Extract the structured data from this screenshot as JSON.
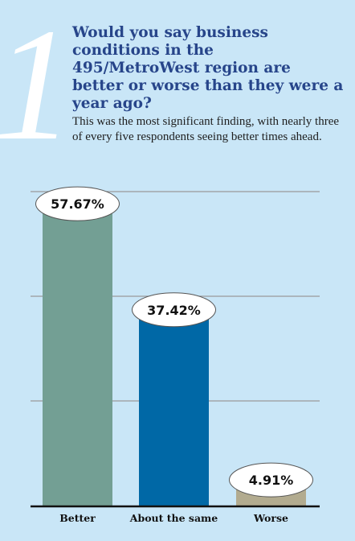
{
  "header": {
    "number": "1",
    "question": "Would you say business conditions in the 495/MetroWest region are better or worse than they were a year ago?",
    "subtitle": "This was the most significant finding, with nearly three of every five respondents seeing better times ahead."
  },
  "chart_data": {
    "type": "bar",
    "categories": [
      "Better",
      "About the same",
      "Worse"
    ],
    "values": [
      57.67,
      37.42,
      4.91
    ],
    "value_labels": [
      "57.67%",
      "37.42%",
      "4.91%"
    ],
    "colors": [
      "#739f94",
      "#0068a6",
      "#b2ab8f"
    ],
    "ylim": [
      0,
      60
    ],
    "grid": true,
    "legend": "none"
  }
}
